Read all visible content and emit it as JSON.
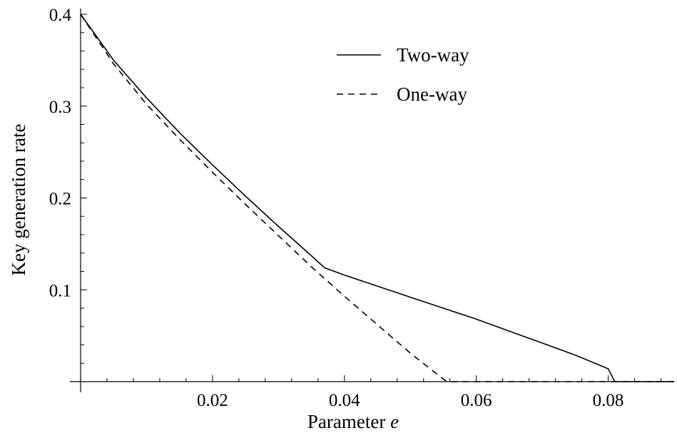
{
  "chart_data": {
    "type": "line",
    "title": "",
    "xlabel": "Parameter",
    "xlabel_variable": "e",
    "ylabel": "Key generation rate",
    "xlim": [
      0,
      0.09
    ],
    "ylim": [
      0,
      0.4
    ],
    "x_major_ticks": [
      0.02,
      0.04,
      0.06,
      0.08
    ],
    "x_tick_labels": [
      "0.02",
      "0.04",
      "0.06",
      "0.08"
    ],
    "y_major_ticks": [
      0.1,
      0.2,
      0.3,
      0.4
    ],
    "y_tick_labels": [
      "0.1",
      "0.2",
      "0.3",
      "0.4"
    ],
    "grid": false,
    "legend_position": "top-right",
    "series": [
      {
        "name": "Two-way",
        "style": "solid",
        "color": "#000000",
        "x": [
          0,
          0.005,
          0.01,
          0.015,
          0.02,
          0.025,
          0.03,
          0.035,
          0.037,
          0.04,
          0.045,
          0.05,
          0.055,
          0.06,
          0.065,
          0.07,
          0.075,
          0.08,
          0.081,
          0.085,
          0.09
        ],
        "y": [
          0.4,
          0.35,
          0.309,
          0.271,
          0.236,
          0.202,
          0.169,
          0.137,
          0.124,
          0.116,
          0.104,
          0.092,
          0.08,
          0.068,
          0.055,
          0.042,
          0.029,
          0.014,
          0,
          0,
          0
        ]
      },
      {
        "name": "One-way",
        "style": "dashed",
        "color": "#000000",
        "x": [
          0,
          0.005,
          0.01,
          0.015,
          0.02,
          0.025,
          0.03,
          0.035,
          0.04,
          0.045,
          0.05,
          0.0555,
          0.06,
          0.07,
          0.08,
          0.09
        ],
        "y": [
          0.4,
          0.346,
          0.302,
          0.264,
          0.228,
          0.193,
          0.159,
          0.125,
          0.093,
          0.062,
          0.031,
          0,
          0,
          0,
          0,
          0
        ]
      }
    ]
  }
}
